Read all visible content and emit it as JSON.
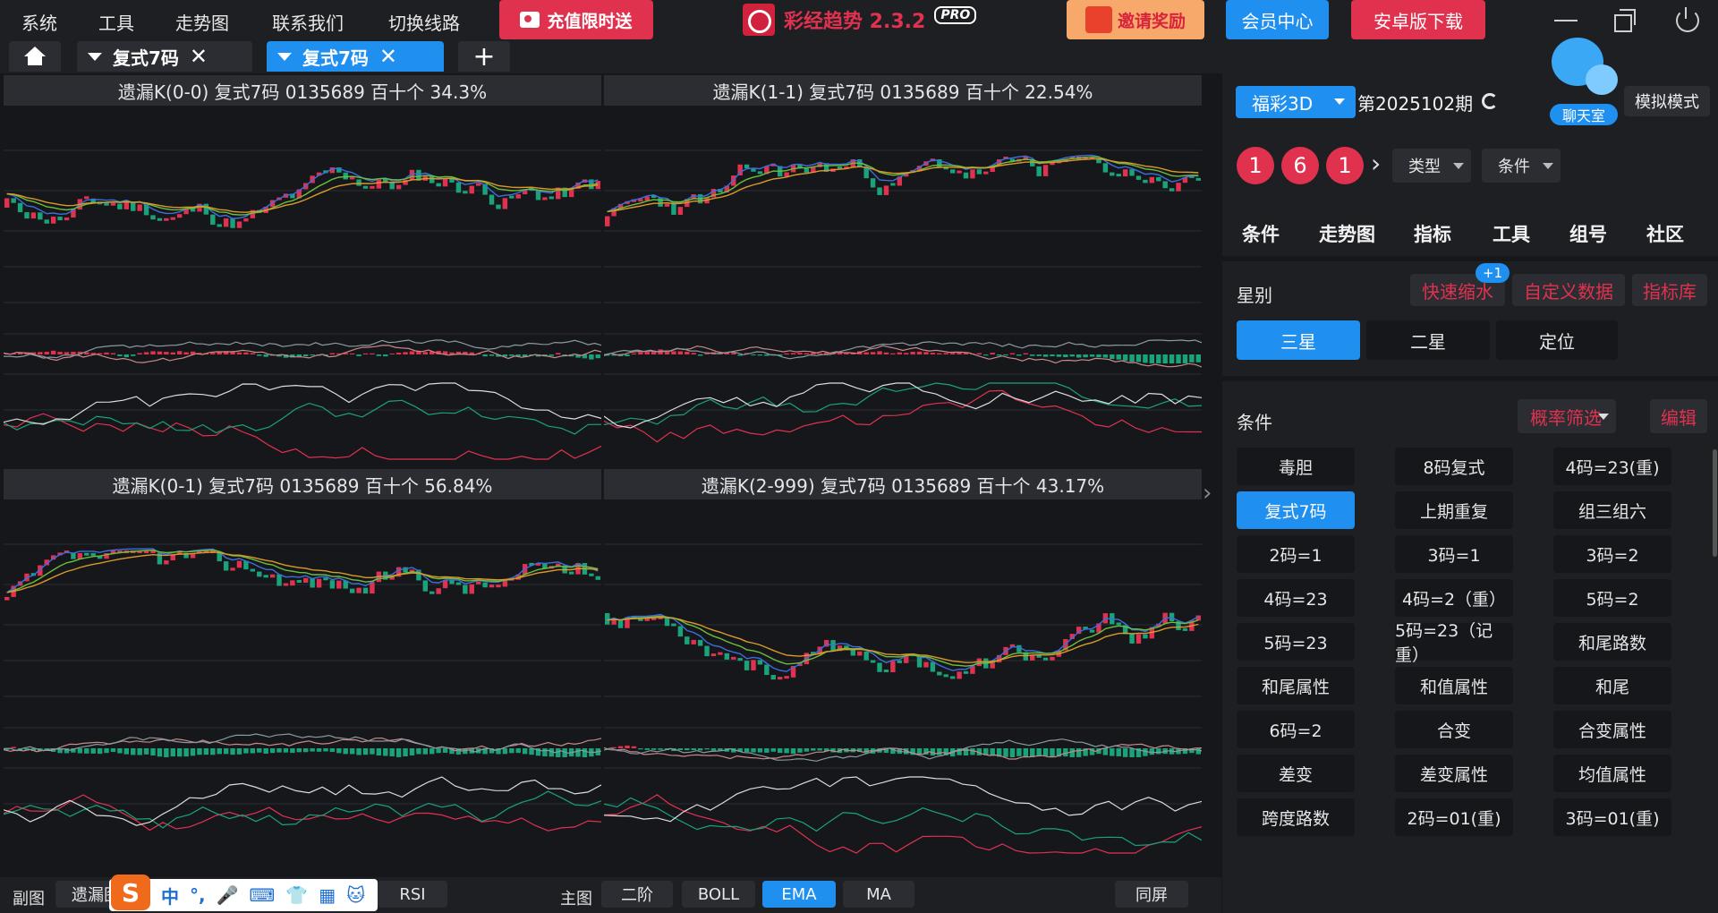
{
  "menu": [
    "系统",
    "工具",
    "走势图",
    "联系我们",
    "切换线路"
  ],
  "promo_label": "充值限时送",
  "app_name": "彩经趋势 2.3.2",
  "app_badge": "PRO",
  "invite_label": "邀请奖励",
  "vip_label": "会员中心",
  "android_label": "安卓版下载",
  "tabs": [
    {
      "label": "复式7码",
      "active": false
    },
    {
      "label": "复式7码",
      "active": true
    }
  ],
  "tab_close_glyph": "✕",
  "tab_add_glyph": "+",
  "panels": [
    {
      "title": "遗漏K(0-0)  复式7码  0135689  百十个  34.3%"
    },
    {
      "title": "遗漏K(1-1)  复式7码  0135689  百十个  22.54%"
    },
    {
      "title": "遗漏K(0-1)  复式7码  0135689  百十个  56.84%"
    },
    {
      "title": "遗漏K(2-999)  复式7码  0135689  百十个  43.17%"
    }
  ],
  "split_arrow": "›",
  "bottom": {
    "sub_label": "副图",
    "sub_value": "遗漏图",
    "ime_chars": [
      "S",
      "中",
      "°,",
      "🎤",
      "⌨",
      "👕",
      "▦",
      "🐱"
    ],
    "rsi_label": "RSI",
    "main_label": "主图",
    "main_buttons": [
      "二阶",
      "BOLL",
      "EMA",
      "MA"
    ],
    "active_main": "EMA",
    "sync_label": "同屏"
  },
  "right": {
    "lottery": "福彩3D",
    "period": "第2025102期",
    "chat_label": "聊天室",
    "sim_label": "模拟模式",
    "balls": [
      "1",
      "6",
      "1"
    ],
    "ball_arrow": "›",
    "type_select": "类型",
    "cond_select": "条件",
    "tabs": [
      "条件",
      "走势图",
      "指标",
      "工具",
      "组号",
      "社区"
    ],
    "star_label": "星别",
    "badge": "+1",
    "links": [
      "快速缩水",
      "自定义数据",
      "指标库"
    ],
    "stars": [
      "三星",
      "二星",
      "定位"
    ],
    "active_star": "三星",
    "cond_label": "条件",
    "prob_filter": "概率筛选",
    "edit_label": "编辑",
    "conditions": [
      "毒胆",
      "8码复式",
      "4码=23(重)",
      "复式7码",
      "上期重复",
      "组三组六",
      "2码=1",
      "3码=1",
      "3码=2",
      "4码=23",
      "4码=2（重）",
      "5码=2",
      "5码=23",
      "5码=23（记重）",
      "和尾路数",
      "和尾属性",
      "和值属性",
      "和尾",
      "6码=2",
      "合变",
      "合变属性",
      "差变",
      "差变属性",
      "均值属性",
      "跨度路数",
      "2码=01(重)",
      "3码=01(重)"
    ],
    "active_condition": "复式7码"
  },
  "colors": {
    "accent": "#1f8ff0",
    "red": "#e0324f",
    "green": "#1aa37a",
    "ema_blue": "#3b6fe0",
    "ema_green": "#6cbf3c",
    "ema_orange": "#d99a2b"
  }
}
